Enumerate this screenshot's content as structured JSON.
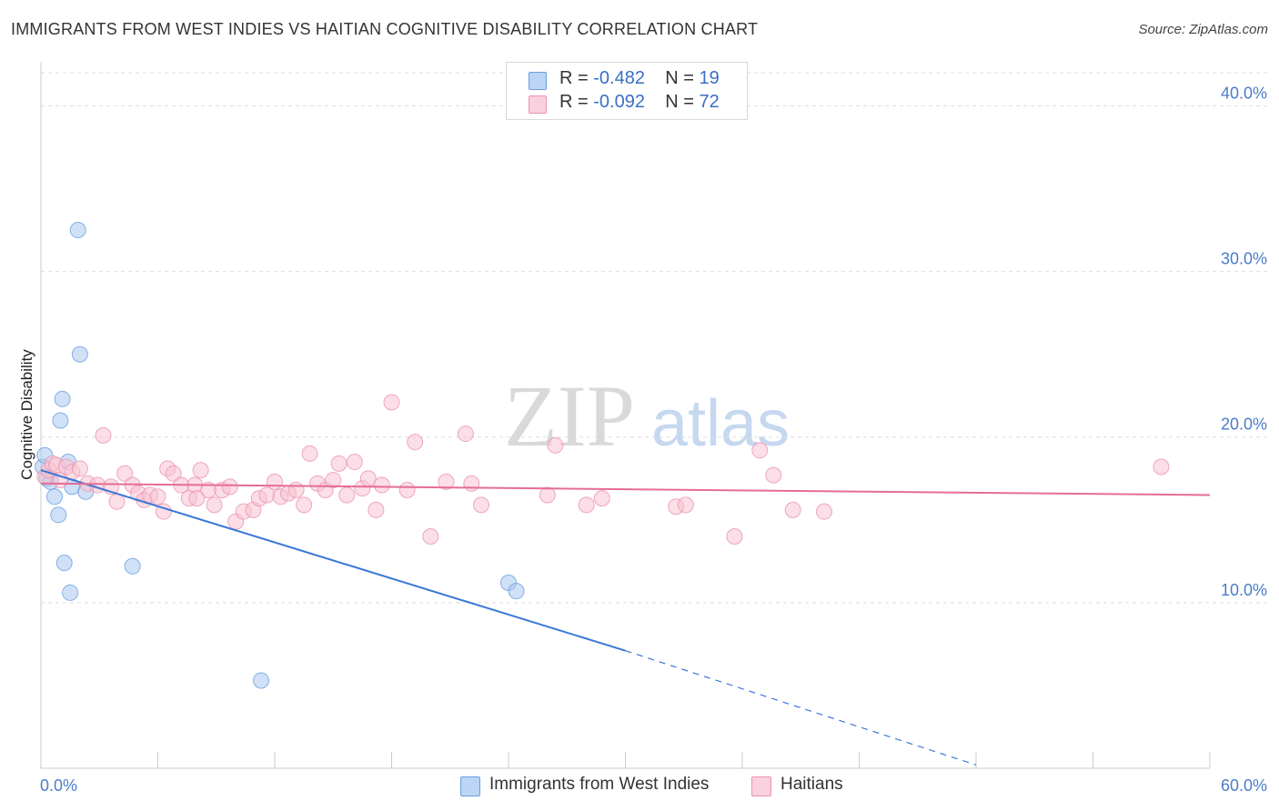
{
  "title": "IMMIGRANTS FROM WEST INDIES VS HAITIAN COGNITIVE DISABILITY CORRELATION CHART",
  "source": "Source: ZipAtlas.com",
  "watermark": {
    "zip": "ZIP",
    "atlas": "atlas"
  },
  "colors": {
    "blue_fill": "#a9c8f0",
    "blue_stroke": "#6b9ee0",
    "blue_line": "#3a78d6",
    "pink_fill": "#f7c2d2",
    "pink_stroke": "#eb93b0",
    "pink_line": "#e56c97",
    "grid": "#dddddd",
    "tick_text": "#4a7cc9"
  },
  "legend": {
    "r_label": "R =",
    "n_label": "N =",
    "series": [
      {
        "name": "Immigrants from West Indies",
        "r": "-0.482",
        "n": "19"
      },
      {
        "name": "Haitians",
        "r": "-0.092",
        "n": "72"
      }
    ]
  },
  "chart_data": {
    "type": "scatter",
    "ylabel": "Cognitive Disability",
    "xlim": [
      0,
      60
    ],
    "ylim": [
      0,
      42
    ],
    "x_tick_labels": [
      {
        "value": 0,
        "label": "0.0%"
      },
      {
        "value": 60,
        "label": "60.0%"
      }
    ],
    "y_tick_labels": [
      {
        "value": 10,
        "label": "10.0%"
      },
      {
        "value": 20,
        "label": "20.0%"
      },
      {
        "value": 30,
        "label": "30.0%"
      },
      {
        "value": 40,
        "label": "40.0%"
      }
    ],
    "series": [
      {
        "name": "Immigrants from West Indies",
        "points": [
          [
            0.1,
            18.2
          ],
          [
            0.2,
            18.9
          ],
          [
            0.3,
            17.5
          ],
          [
            0.5,
            17.3
          ],
          [
            0.7,
            16.4
          ],
          [
            0.9,
            15.3
          ],
          [
            1.0,
            21.0
          ],
          [
            1.1,
            22.3
          ],
          [
            1.2,
            12.4
          ],
          [
            1.4,
            18.5
          ],
          [
            1.5,
            10.6
          ],
          [
            1.6,
            17.0
          ],
          [
            1.9,
            32.5
          ],
          [
            2.0,
            25.0
          ],
          [
            2.3,
            16.7
          ],
          [
            4.7,
            12.2
          ],
          [
            11.3,
            5.3
          ],
          [
            24.0,
            11.2
          ],
          [
            24.4,
            10.7
          ]
        ],
        "trend": {
          "x0": 0,
          "y0": 18.0,
          "x1": 30,
          "y1": 7.1
        },
        "trend_dashed": {
          "x0": 30,
          "y0": 7.1,
          "x1": 48,
          "y1": 0.2
        }
      },
      {
        "name": "Haitians",
        "points": [
          [
            0.2,
            17.6
          ],
          [
            0.4,
            18.0
          ],
          [
            0.6,
            18.4
          ],
          [
            0.8,
            18.3
          ],
          [
            1.0,
            17.4
          ],
          [
            1.3,
            18.2
          ],
          [
            1.6,
            17.9
          ],
          [
            2.0,
            18.1
          ],
          [
            2.4,
            17.2
          ],
          [
            2.9,
            17.1
          ],
          [
            3.2,
            20.1
          ],
          [
            3.6,
            17.0
          ],
          [
            3.9,
            16.1
          ],
          [
            4.3,
            17.8
          ],
          [
            4.7,
            17.1
          ],
          [
            5.0,
            16.6
          ],
          [
            5.3,
            16.2
          ],
          [
            5.6,
            16.5
          ],
          [
            6.0,
            16.4
          ],
          [
            6.3,
            15.5
          ],
          [
            6.5,
            18.1
          ],
          [
            6.8,
            17.8
          ],
          [
            7.2,
            17.1
          ],
          [
            7.6,
            16.3
          ],
          [
            7.9,
            17.1
          ],
          [
            8.2,
            18.0
          ],
          [
            8.6,
            16.8
          ],
          [
            8.9,
            15.9
          ],
          [
            9.3,
            16.8
          ],
          [
            9.7,
            17.0
          ],
          [
            10.0,
            14.9
          ],
          [
            10.4,
            15.5
          ],
          [
            10.9,
            15.6
          ],
          [
            11.2,
            16.3
          ],
          [
            11.6,
            16.5
          ],
          [
            12.0,
            17.3
          ],
          [
            12.3,
            16.4
          ],
          [
            12.7,
            16.6
          ],
          [
            13.1,
            16.8
          ],
          [
            13.5,
            15.9
          ],
          [
            13.8,
            19.0
          ],
          [
            14.2,
            17.2
          ],
          [
            14.6,
            16.8
          ],
          [
            15.0,
            17.4
          ],
          [
            15.3,
            18.4
          ],
          [
            15.7,
            16.5
          ],
          [
            16.1,
            18.5
          ],
          [
            16.5,
            16.9
          ],
          [
            16.8,
            17.5
          ],
          [
            17.2,
            15.6
          ],
          [
            17.5,
            17.1
          ],
          [
            18.0,
            22.1
          ],
          [
            18.8,
            16.8
          ],
          [
            19.2,
            19.7
          ],
          [
            20.0,
            14.0
          ],
          [
            20.8,
            17.3
          ],
          [
            21.8,
            20.2
          ],
          [
            22.1,
            17.2
          ],
          [
            22.6,
            15.9
          ],
          [
            26.0,
            16.5
          ],
          [
            26.4,
            19.5
          ],
          [
            28.0,
            15.9
          ],
          [
            28.8,
            16.3
          ],
          [
            32.6,
            15.8
          ],
          [
            33.1,
            15.9
          ],
          [
            35.6,
            14.0
          ],
          [
            36.9,
            19.2
          ],
          [
            37.6,
            17.7
          ],
          [
            38.6,
            15.6
          ],
          [
            40.2,
            15.5
          ],
          [
            57.5,
            18.2
          ],
          [
            8.0,
            16.3
          ]
        ],
        "trend": {
          "x0": 0,
          "y0": 17.2,
          "x1": 60,
          "y1": 16.5
        }
      }
    ]
  }
}
